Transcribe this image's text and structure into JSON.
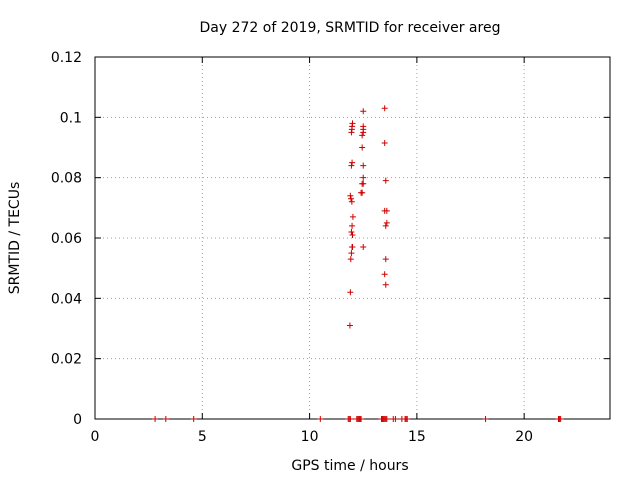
{
  "chart_data": {
    "type": "scatter",
    "title": "Day 272 of 2019, SRMTID for receiver areg",
    "xlabel": "GPS time / hours",
    "ylabel": "SRMTID / TECUs",
    "xlim": [
      0,
      24
    ],
    "ylim": [
      0,
      0.12
    ],
    "xticks": [
      0,
      5,
      10,
      15,
      20
    ],
    "xtick_labels": [
      "0",
      "5",
      "10",
      "15",
      "20"
    ],
    "yticks": [
      0,
      0.02,
      0.04,
      0.06,
      0.08,
      0.1,
      0.12
    ],
    "ytick_labels": [
      "0",
      "0.02",
      "0.04",
      "0.06",
      "0.08",
      "0.1",
      "0.12"
    ],
    "grid": true,
    "marker": "plus",
    "color": "#cc0000",
    "series": [
      {
        "name": "SRMTID",
        "points": [
          [
            2.8,
            0
          ],
          [
            3.3,
            0
          ],
          [
            4.6,
            0
          ],
          [
            10.5,
            0
          ],
          [
            11.8,
            0
          ],
          [
            11.85,
            0
          ],
          [
            11.9,
            0
          ],
          [
            12.2,
            0
          ],
          [
            12.25,
            0
          ],
          [
            12.3,
            0
          ],
          [
            12.35,
            0
          ],
          [
            12.4,
            0
          ],
          [
            13.35,
            0
          ],
          [
            13.4,
            0
          ],
          [
            13.45,
            0
          ],
          [
            13.5,
            0
          ],
          [
            13.55,
            0
          ],
          [
            13.6,
            0
          ],
          [
            13.9,
            0
          ],
          [
            14.0,
            0
          ],
          [
            14.3,
            0
          ],
          [
            14.45,
            0
          ],
          [
            14.5,
            0
          ],
          [
            14.55,
            0
          ],
          [
            18.2,
            0
          ],
          [
            21.6,
            0
          ],
          [
            21.65,
            0
          ],
          [
            21.7,
            0
          ],
          [
            11.88,
            0.031
          ],
          [
            11.9,
            0.042
          ],
          [
            11.92,
            0.053
          ],
          [
            11.95,
            0.055
          ],
          [
            11.98,
            0.057
          ],
          [
            12.0,
            0.057
          ],
          [
            11.95,
            0.062
          ],
          [
            12.0,
            0.061
          ],
          [
            11.98,
            0.064
          ],
          [
            12.02,
            0.067
          ],
          [
            11.97,
            0.072
          ],
          [
            11.93,
            0.073
          ],
          [
            11.9,
            0.074
          ],
          [
            11.95,
            0.084
          ],
          [
            11.98,
            0.085
          ],
          [
            11.95,
            0.095
          ],
          [
            11.97,
            0.096
          ],
          [
            11.98,
            0.097
          ],
          [
            12.0,
            0.098
          ],
          [
            12.5,
            0.057
          ],
          [
            12.4,
            0.075
          ],
          [
            12.45,
            0.075
          ],
          [
            12.45,
            0.078
          ],
          [
            12.5,
            0.078
          ],
          [
            12.5,
            0.08
          ],
          [
            12.5,
            0.084
          ],
          [
            12.45,
            0.09
          ],
          [
            12.45,
            0.094
          ],
          [
            12.5,
            0.095
          ],
          [
            12.5,
            0.096
          ],
          [
            12.5,
            0.097
          ],
          [
            12.5,
            0.102
          ],
          [
            13.55,
            0.0445
          ],
          [
            13.5,
            0.048
          ],
          [
            13.55,
            0.053
          ],
          [
            13.55,
            0.064
          ],
          [
            13.6,
            0.065
          ],
          [
            13.5,
            0.069
          ],
          [
            13.6,
            0.069
          ],
          [
            13.55,
            0.079
          ],
          [
            13.5,
            0.0915
          ],
          [
            13.5,
            0.103
          ]
        ]
      }
    ]
  }
}
